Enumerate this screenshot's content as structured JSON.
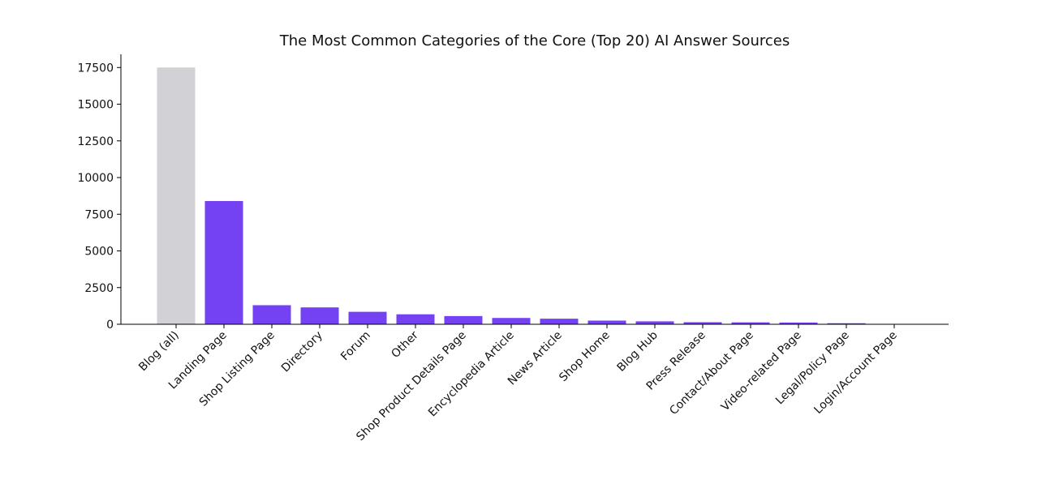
{
  "chart_data": {
    "type": "bar",
    "title": "The Most Common Categories of the Core (Top 20) AI Answer Sources",
    "xlabel": "",
    "ylabel": "",
    "categories": [
      "Blog (all)",
      "Landing Page",
      "Shop Listing Page",
      "Directory",
      "Forum",
      "Other",
      "Shop Product Details Page",
      "Encyclopedia Article",
      "News Article",
      "Shop Home",
      "Blog Hub",
      "Press Release",
      "Contact/About Page",
      "Video-related Page",
      "Legal/Policy Page",
      "Login/Account Page"
    ],
    "values": [
      17500,
      8400,
      1300,
      1150,
      850,
      680,
      560,
      430,
      380,
      250,
      200,
      140,
      130,
      120,
      70,
      15
    ],
    "bar_colors": [
      "#d1d1d6",
      "#7442f2",
      "#7442f2",
      "#7442f2",
      "#7442f2",
      "#7442f2",
      "#7442f2",
      "#7442f2",
      "#7442f2",
      "#7442f2",
      "#7442f2",
      "#7442f2",
      "#7442f2",
      "#7442f2",
      "#7442f2",
      "#7442f2"
    ],
    "highlight_color": "#d1d1d6",
    "accent_color": "#7442f2",
    "yticks": [
      0,
      2500,
      5000,
      7500,
      10000,
      12500,
      15000,
      17500
    ],
    "ylim": [
      0,
      18400
    ],
    "grid": false,
    "legend": "none",
    "spines": "left-bottom"
  }
}
